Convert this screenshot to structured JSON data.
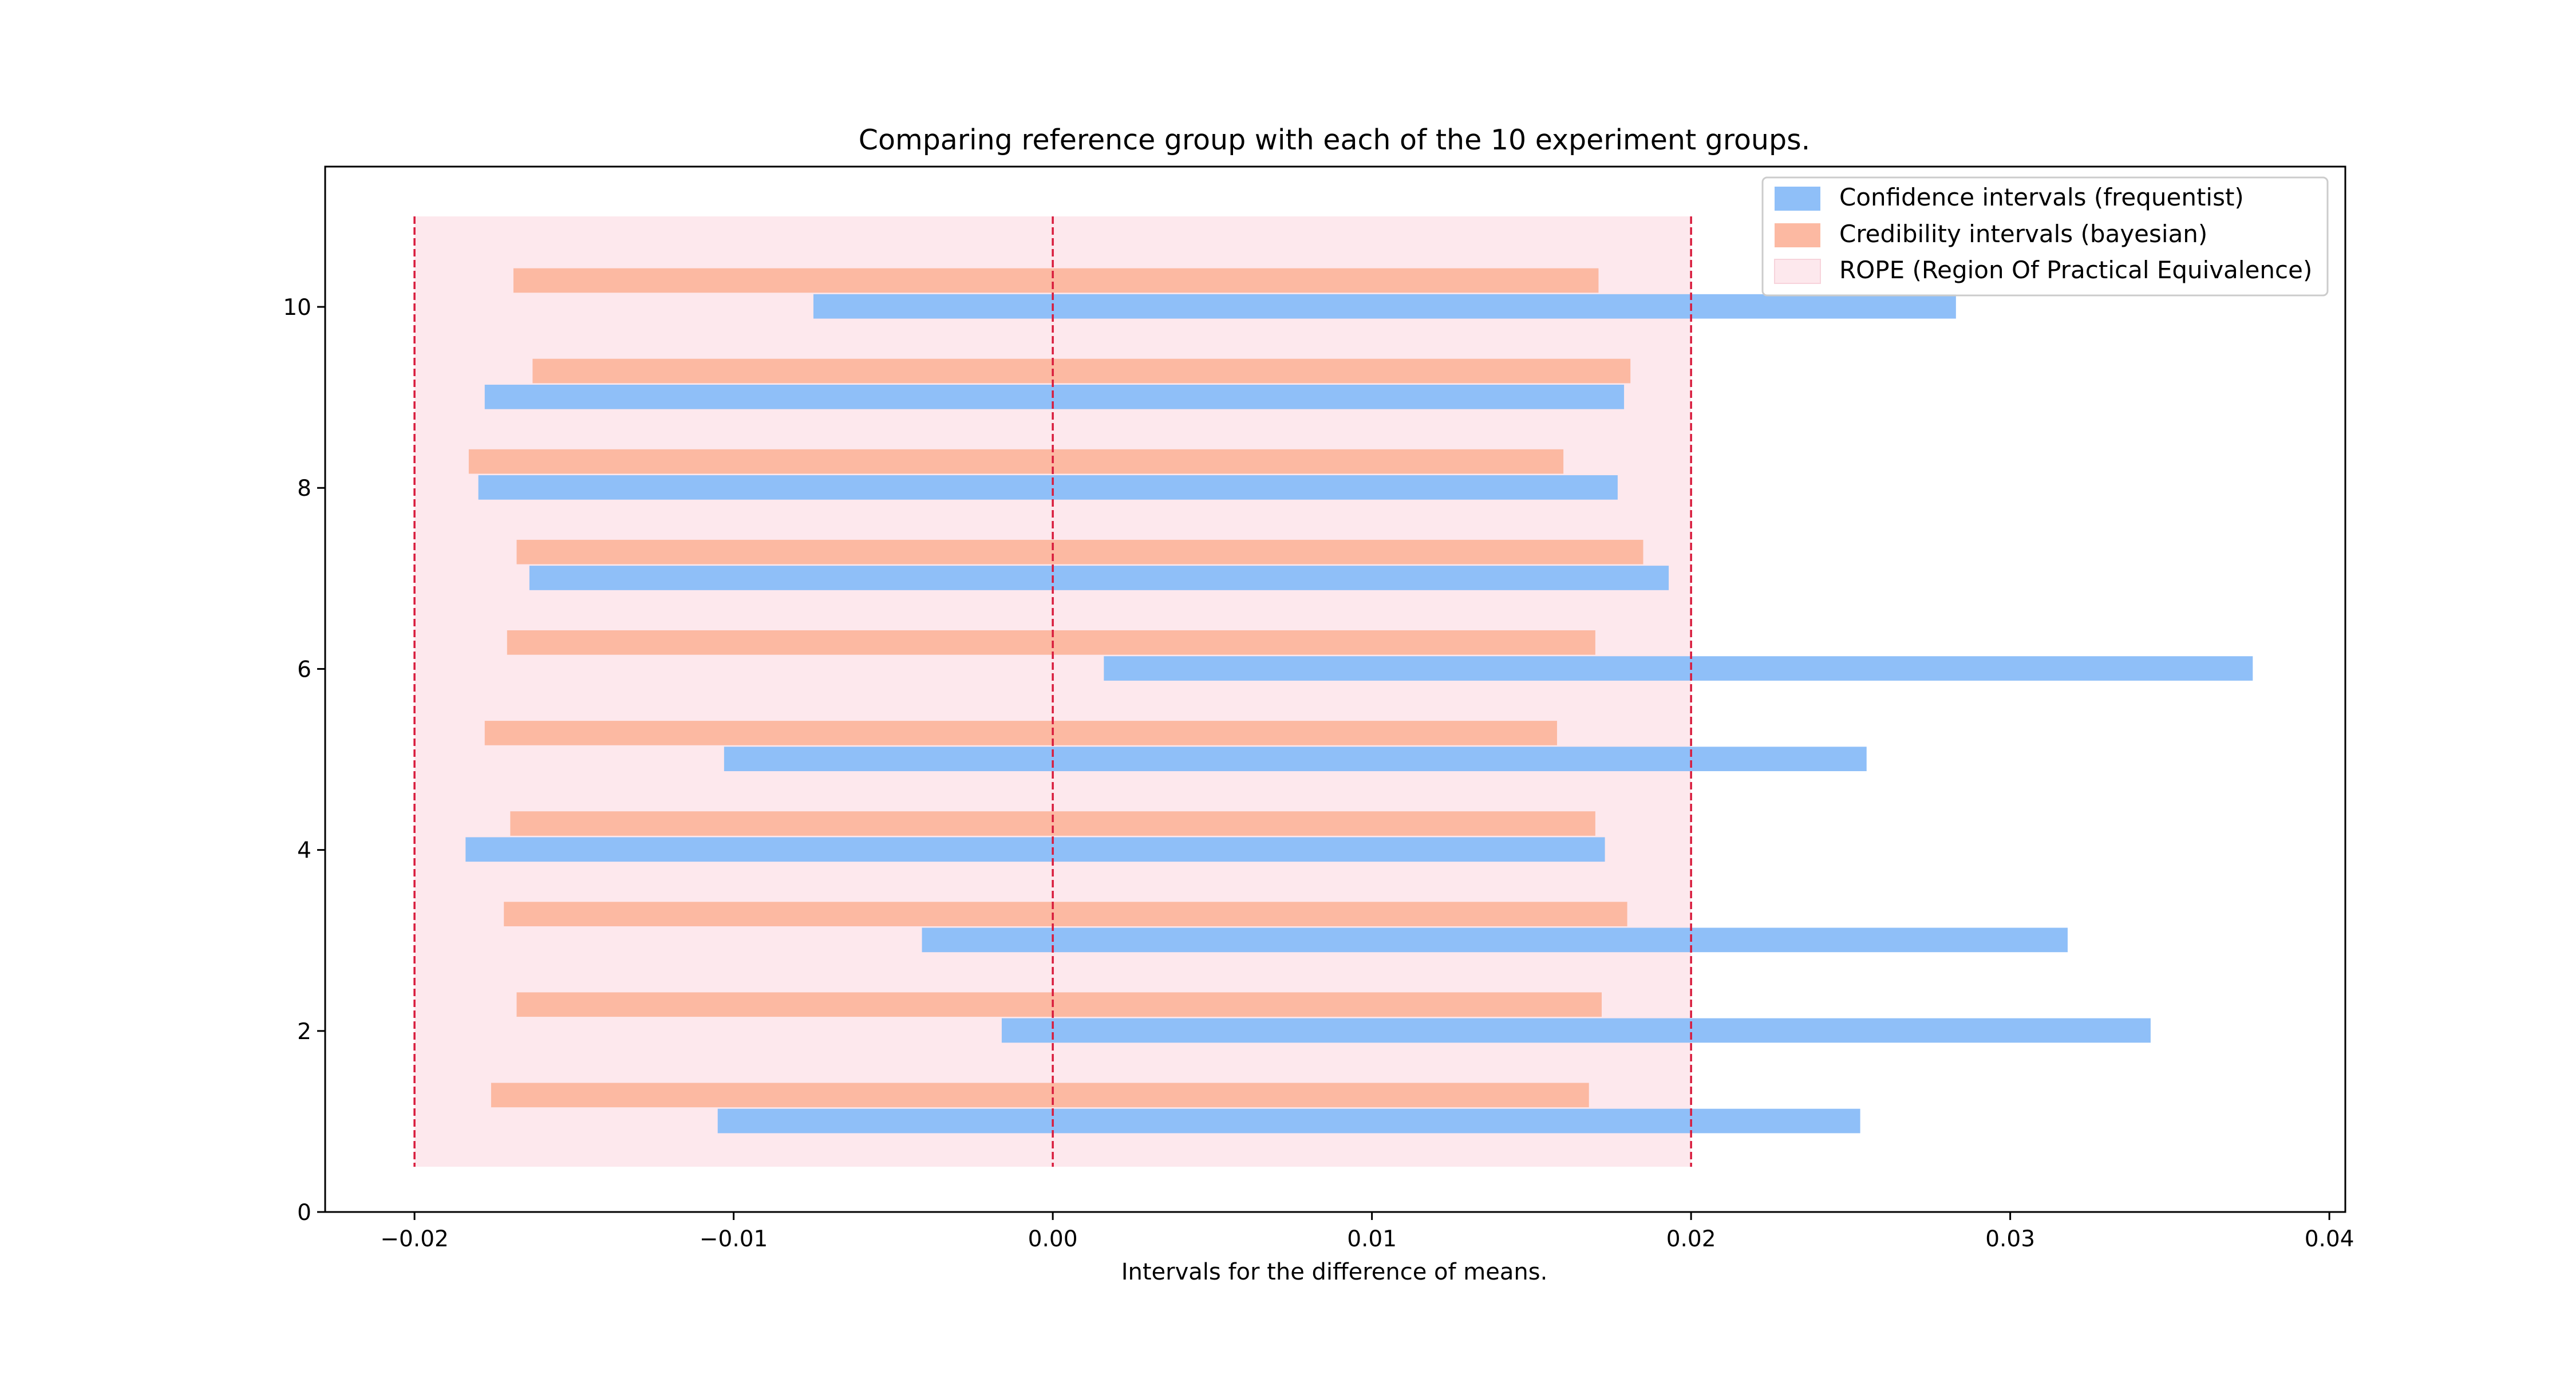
{
  "chart_data": {
    "type": "bar",
    "orientation": "horizontal-range",
    "title": "Comparing reference group with each of the 10 experiment groups.",
    "xlabel": "Intervals for the difference of means.",
    "ylabel": "",
    "xlim": [
      -0.0228,
      0.0405
    ],
    "ylim": [
      0,
      11.55
    ],
    "xticks": [
      -0.02,
      -0.01,
      0.0,
      0.01,
      0.02,
      0.03,
      0.04
    ],
    "xtick_labels": [
      "−0.02",
      "−0.01",
      "0.00",
      "0.01",
      "0.02",
      "0.03",
      "0.04"
    ],
    "yticks": [
      0,
      2,
      4,
      6,
      8,
      10
    ],
    "ytick_labels": [
      "0",
      "2",
      "4",
      "6",
      "8",
      "10"
    ],
    "groups": [
      1,
      2,
      3,
      4,
      5,
      6,
      7,
      8,
      9,
      10
    ],
    "series": [
      {
        "name": "Confidence intervals (frequentist)",
        "color": "#8fbff8",
        "intervals": [
          [
            -0.0105,
            0.0253
          ],
          [
            -0.0016,
            0.0344
          ],
          [
            -0.0041,
            0.0318
          ],
          [
            -0.0184,
            0.0173
          ],
          [
            -0.0103,
            0.0255
          ],
          [
            0.0016,
            0.0376
          ],
          [
            -0.0164,
            0.0193
          ],
          [
            -0.018,
            0.0177
          ],
          [
            -0.0178,
            0.0179
          ],
          [
            -0.0075,
            0.0283
          ]
        ]
      },
      {
        "name": "Credibility intervals (bayesian)",
        "color": "#fcb9a2",
        "intervals": [
          [
            -0.0176,
            0.0168
          ],
          [
            -0.0168,
            0.0172
          ],
          [
            -0.0172,
            0.018
          ],
          [
            -0.017,
            0.017
          ],
          [
            -0.0178,
            0.0158
          ],
          [
            -0.0171,
            0.017
          ],
          [
            -0.0168,
            0.0185
          ],
          [
            -0.0183,
            0.016
          ],
          [
            -0.0163,
            0.0181
          ],
          [
            -0.0169,
            0.0171
          ]
        ]
      }
    ],
    "rope": {
      "name": "ROPE (Region Of Practical Equivalence)",
      "range": [
        -0.02,
        0.02
      ],
      "y_range": [
        0.5,
        11
      ],
      "color": "#fde8ed",
      "line_color": "#d81b3c",
      "vlines": [
        -0.02,
        0.0,
        0.02
      ]
    },
    "grid": false,
    "legend_position": "top-right"
  }
}
